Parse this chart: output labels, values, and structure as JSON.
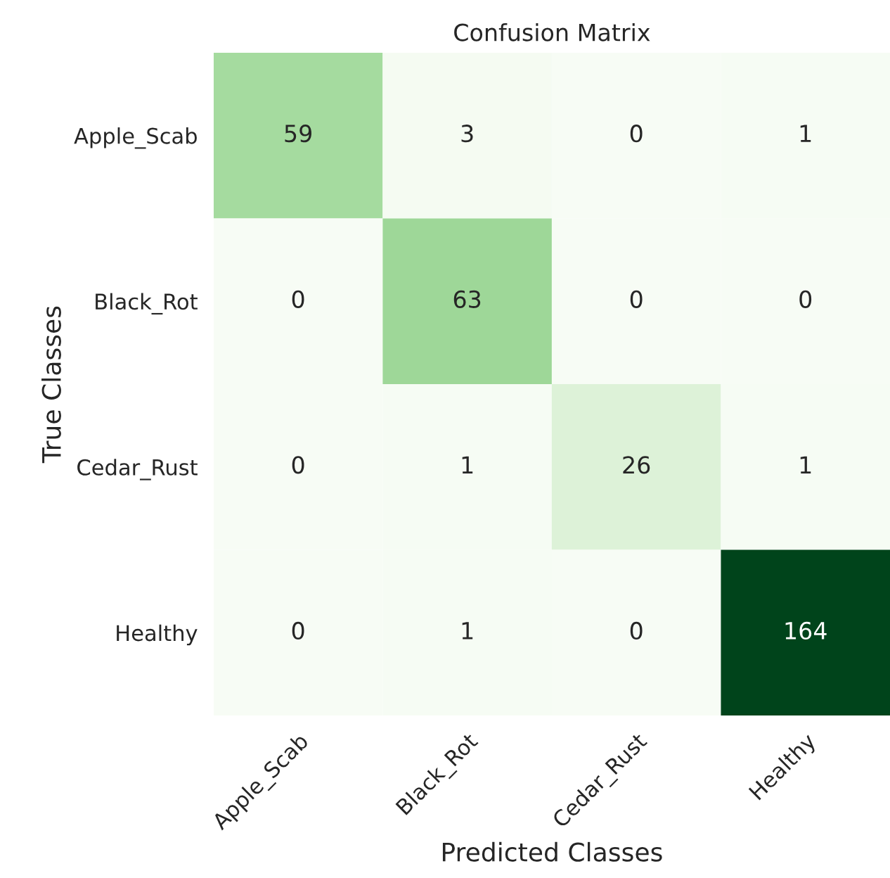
{
  "chart_data": {
    "type": "heatmap",
    "title": "Confusion Matrix",
    "xlabel": "Predicted Classes",
    "ylabel": "True Classes",
    "categories": [
      "Apple_Scab",
      "Black_Rot",
      "Cedar_Rust",
      "Healthy"
    ],
    "y_categories": [
      "Apple_Scab",
      "Black_Rot",
      "Cedar_Rust",
      "Healthy"
    ],
    "cells": [
      [
        59,
        3,
        0,
        1
      ],
      [
        0,
        63,
        0,
        0
      ],
      [
        0,
        1,
        26,
        1
      ],
      [
        0,
        1,
        0,
        164
      ]
    ],
    "data_labels": true
  }
}
